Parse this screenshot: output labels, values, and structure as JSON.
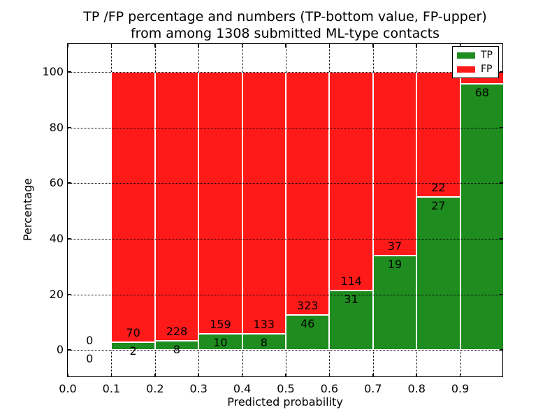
{
  "title": {
    "line1": "TP /FP percentage and numbers (TP-bottom value, FP-upper)",
    "line2": "from among 1308 submitted ML-type contacts"
  },
  "axes": {
    "x_label": "Predicted probability",
    "y_label": "Percentage",
    "x_tick_labels": [
      "0.0",
      "0.1",
      "0.2",
      "0.3",
      "0.4",
      "0.5",
      "0.6",
      "0.7",
      "0.8",
      "0.9"
    ],
    "x_tick_values": [
      0.0,
      0.1,
      0.2,
      0.3,
      0.4,
      0.5,
      0.6,
      0.7,
      0.8,
      0.9
    ],
    "x_grid_values": [
      0.1,
      0.2,
      0.3,
      0.4,
      0.5,
      0.6,
      0.7,
      0.8,
      0.9
    ],
    "y_tick_labels": [
      "0",
      "20",
      "40",
      "60",
      "80",
      "100"
    ],
    "y_tick_values": [
      0,
      20,
      40,
      60,
      80,
      100
    ],
    "xlim": [
      0.0,
      1.0
    ],
    "ylim": [
      -10,
      110
    ],
    "grid": true
  },
  "legend": {
    "position": "upper-right",
    "items": [
      {
        "label": "TP",
        "color": "#1e8c1e"
      },
      {
        "label": "FP",
        "color": "#ff1a1a"
      }
    ]
  },
  "colors": {
    "tp": "#1e8c1e",
    "fp": "#ff1a1a",
    "bar_edge": "#ffffff",
    "grid": "#000000",
    "text": "#000000",
    "background": "#ffffff"
  },
  "chart_data": {
    "type": "bar",
    "stacked": true,
    "stack_total_pct": 100,
    "total_contacts": 1308,
    "bins": [
      {
        "x0": 0.0,
        "x1": 0.1,
        "tp_count": 0,
        "fp_count": 0,
        "tp_label": "0",
        "fp_label": "0",
        "tp_pct": null
      },
      {
        "x0": 0.1,
        "x1": 0.2,
        "tp_count": 2,
        "fp_count": 70,
        "tp_label": "2",
        "fp_label": "70",
        "tp_pct": 2.8
      },
      {
        "x0": 0.2,
        "x1": 0.3,
        "tp_count": 8,
        "fp_count": 228,
        "tp_label": "8",
        "fp_label": "228",
        "tp_pct": 3.4
      },
      {
        "x0": 0.3,
        "x1": 0.4,
        "tp_count": 10,
        "fp_count": 159,
        "tp_label": "10",
        "fp_label": "159",
        "tp_pct": 5.9
      },
      {
        "x0": 0.4,
        "x1": 0.5,
        "tp_count": 8,
        "fp_count": 133,
        "tp_label": "8",
        "fp_label": "133",
        "tp_pct": 5.7
      },
      {
        "x0": 0.5,
        "x1": 0.6,
        "tp_count": 46,
        "fp_count": 323,
        "tp_label": "46",
        "fp_label": "323",
        "tp_pct": 12.5
      },
      {
        "x0": 0.6,
        "x1": 0.7,
        "tp_count": 31,
        "fp_count": 114,
        "tp_label": "31",
        "fp_label": "114",
        "tp_pct": 21.4
      },
      {
        "x0": 0.7,
        "x1": 0.8,
        "tp_count": 19,
        "fp_count": 37,
        "tp_label": "19",
        "fp_label": "37",
        "tp_pct": 33.9
      },
      {
        "x0": 0.8,
        "x1": 0.9,
        "tp_count": 27,
        "fp_count": 22,
        "tp_label": "27",
        "fp_label": "22",
        "tp_pct": 55.1
      },
      {
        "x0": 0.9,
        "x1": 1.0,
        "tp_count": 68,
        "tp_label": "68",
        "fp_label": "",
        "tp_pct": 95.8
      }
    ]
  }
}
